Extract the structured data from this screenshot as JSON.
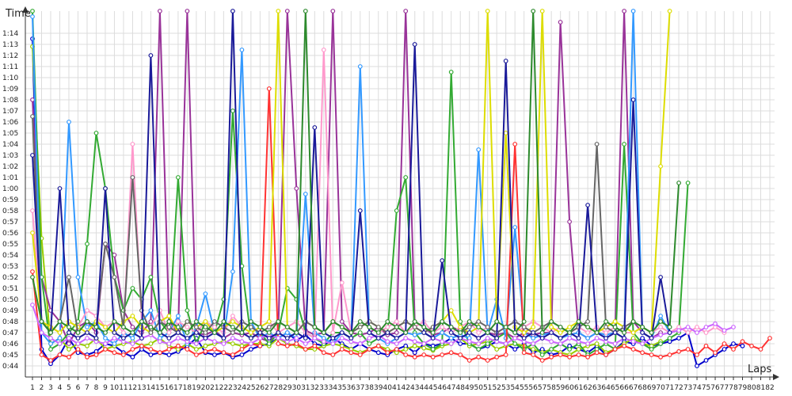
{
  "chart_data": {
    "type": "line",
    "ylabel": "Time",
    "xlabel": "Laps",
    "x_range": [
      1,
      82
    ],
    "ylim_seconds": [
      43,
      76
    ],
    "y_ticks": [
      "0:44",
      "0:45",
      "0:46",
      "0:47",
      "0:48",
      "0:49",
      "0:50",
      "0:51",
      "0:52",
      "0:53",
      "0:54",
      "0:55",
      "0:56",
      "0:57",
      "0:58",
      "0:59",
      "1:00",
      "1:01",
      "1:02",
      "1:03",
      "1:04",
      "1:05",
      "1:06",
      "1:07",
      "1:08",
      "1:09",
      "1:10",
      "1:11",
      "1:12",
      "1:13",
      "1:14"
    ],
    "y_tick_labels": [
      "0:44",
      "0:45",
      "0:46",
      "0:47",
      "0:48",
      "0:49",
      "0:50",
      "0:51",
      "0:52",
      "0:53",
      "0:54",
      "0:55",
      "0:56",
      "0:57",
      "0:58",
      "0:59",
      "1:00",
      "1:01",
      "1:02",
      "1:03",
      "1:04",
      "1:05",
      "1:06",
      "1:07",
      "1:08",
      "1:09",
      "1:10",
      "1:11",
      "1:12",
      "1:13",
      "1:14"
    ],
    "grid": true,
    "series": [
      {
        "color": "#0000cc",
        "values": [
          73.5,
          45.5,
          44.2,
          45.0,
          46.5,
          45.2,
          45.0,
          45.3,
          46.0,
          45.8,
          45.2,
          44.8,
          45.5,
          45.0,
          45.2,
          45.0,
          45.3,
          45.8,
          46.5,
          45.2,
          45.0,
          45.2,
          44.8,
          45.0,
          45.5,
          45.8,
          46.0,
          46.5,
          47.0,
          46.3,
          46.8,
          46.0,
          45.8,
          46.5,
          46.0,
          45.5,
          46.0,
          45.5,
          45.2,
          45.0,
          45.5,
          45.8,
          45.2,
          46.0,
          45.8,
          46.0,
          46.5,
          46.0,
          46.0,
          45.5,
          45.8,
          46.2,
          46.0,
          45.5,
          46.0,
          45.2,
          45.5,
          45.0,
          45.2,
          45.8,
          45.5,
          45.2,
          45.8,
          45.0,
          45.5,
          46.2,
          46.0,
          46.5,
          45.8,
          46.0,
          46.2,
          46.5,
          47.0,
          44.0,
          44.5,
          45.0,
          45.5,
          46.0,
          45.8
        ]
      },
      {
        "color": "#99cc00",
        "values": [
          72.8,
          55.5,
          46.0,
          46.5,
          45.5,
          46.0,
          45.8,
          46.5,
          45.5,
          45.8,
          46.0,
          46.2,
          45.8,
          46.0,
          46.5,
          45.8,
          45.5,
          46.0,
          45.5,
          45.8,
          46.0,
          46.2,
          46.0,
          45.8,
          46.0,
          46.0,
          45.8,
          46.5,
          46.0,
          45.8,
          45.5,
          45.5,
          45.8,
          46.0,
          45.8,
          45.5,
          45.2,
          45.5,
          45.8,
          45.5,
          45.2,
          45.5,
          45.8,
          45.6,
          45.4,
          45.8,
          46.0,
          46.5,
          45.8,
          46.0,
          46.2,
          45.5,
          45.8,
          46.0,
          45.8,
          45.5,
          45.2,
          45.5,
          45.2,
          45.0,
          45.5,
          45.8,
          46.0,
          45.2,
          45.5,
          46.0,
          46.5,
          46.0,
          45.8,
          46.2
        ]
      },
      {
        "color": "#993399",
        "values": [
          68.0,
          52.0,
          49.0,
          48.0,
          46.0,
          47.5,
          48.0,
          47.0,
          55.0,
          54.0,
          49.0,
          47.5,
          47.0,
          48.0,
          76.0,
          48.0,
          47.0,
          76.0,
          47.0,
          46.8,
          47.2,
          46.5,
          47.0,
          46.8,
          47.0,
          46.5,
          46.2,
          47.0,
          76.0,
          60.0,
          47.2,
          46.8,
          47.0,
          76.0,
          48.0,
          47.0,
          46.8,
          47.0,
          47.5,
          46.8,
          47.0,
          76.0,
          48.0,
          47.5,
          46.8,
          47.0,
          47.5,
          47.2,
          47.0,
          46.5,
          47.0,
          46.8,
          47.0,
          46.5,
          47.0,
          46.8,
          47.0,
          47.0,
          75.0,
          57.0,
          47.0,
          46.5,
          47.0,
          46.8,
          47.0,
          76.0,
          48.0,
          47.0,
          46.5,
          47.0
        ]
      },
      {
        "color": "#33aa33",
        "values": [
          76.0,
          52.0,
          45.5,
          46.0,
          47.0,
          48.0,
          55.0,
          65.0,
          60.0,
          52.0,
          49.0,
          51.0,
          50.0,
          52.0,
          48.0,
          47.0,
          61.0,
          49.0,
          46.0,
          48.0,
          47.0,
          50.0,
          67.0,
          53.0,
          46.5,
          47.0,
          46.0,
          47.0,
          51.0,
          50.0,
          47.0,
          46.5,
          46.0,
          47.0,
          47.0,
          46.5,
          47.0,
          46.0,
          46.5,
          47.0,
          58.0,
          61.0,
          47.0,
          46.0,
          45.5,
          46.0,
          70.5,
          48.0,
          46.0,
          45.5,
          46.0,
          46.5,
          47.0,
          46.0,
          45.5,
          46.0,
          45.0,
          45.5,
          46.0,
          45.5,
          46.0,
          45.0,
          45.5,
          46.0,
          45.5,
          64.0,
          47.0,
          46.0,
          45.5,
          46.0,
          46.5,
          47.0,
          60.5
        ]
      },
      {
        "color": "#3399ff",
        "values": [
          75.5,
          47.0,
          46.0,
          46.5,
          66.0,
          52.0,
          47.5,
          48.0,
          46.5,
          46.0,
          47.0,
          46.5,
          48.0,
          49.0,
          46.5,
          47.0,
          48.5,
          46.0,
          47.5,
          50.5,
          47.0,
          46.5,
          52.5,
          72.5,
          48.0,
          46.5,
          47.0,
          46.5,
          47.0,
          46.5,
          59.5,
          47.0,
          46.5,
          46.0,
          47.0,
          46.5,
          71.0,
          47.0,
          46.5,
          46.0,
          46.5,
          47.0,
          46.8,
          47.0,
          46.5,
          47.0,
          46.5,
          46.8,
          46.5,
          63.5,
          47.0,
          50.0,
          46.5,
          56.5,
          47.0,
          46.5,
          46.8,
          47.0,
          46.5,
          46.8,
          47.0,
          46.5,
          47.0,
          46.8,
          47.0,
          46.5,
          76.0,
          47.0,
          46.5,
          48.5,
          47.0
        ]
      },
      {
        "color": "#ff3333",
        "values": [
          52.5,
          45.0,
          44.5,
          45.0,
          44.8,
          45.5,
          44.8,
          45.0,
          45.5,
          45.2,
          45.0,
          45.5,
          45.8,
          45.5,
          45.2,
          45.5,
          45.8,
          45.5,
          45.0,
          45.3,
          45.5,
          45.2,
          45.0,
          45.5,
          46.0,
          45.8,
          69.0,
          46.0,
          45.8,
          46.0,
          45.5,
          45.8,
          45.2,
          45.0,
          45.5,
          45.2,
          45.0,
          45.5,
          45.8,
          45.2,
          45.5,
          45.0,
          44.8,
          45.0,
          44.8,
          45.0,
          45.2,
          45.0,
          44.5,
          44.8,
          44.5,
          44.8,
          45.0,
          64.0,
          45.2,
          45.0,
          44.5,
          44.8,
          45.0,
          44.8,
          45.0,
          44.8,
          45.2,
          45.0,
          45.5,
          45.8,
          45.5,
          45.2,
          45.0,
          44.8,
          45.0,
          45.3,
          45.5,
          45.0,
          45.8,
          45.2,
          46.0,
          45.5,
          46.2,
          45.8,
          45.5,
          46.5
        ]
      },
      {
        "color": "#ff99cc",
        "values": [
          58.0,
          48.0,
          47.5,
          47.0,
          48.0,
          47.5,
          49.0,
          48.5,
          47.5,
          48.0,
          47.0,
          64.0,
          48.0,
          47.5,
          49.0,
          47.0,
          48.0,
          47.5,
          47.0,
          48.0,
          47.5,
          47.0,
          48.5,
          47.5,
          47.0,
          47.5,
          48.0,
          47.0,
          47.5,
          48.0,
          47.0,
          46.5,
          72.5,
          47.0,
          51.5,
          47.0,
          48.0,
          47.5,
          47.0,
          47.5,
          48.0,
          47.0,
          47.5,
          48.0,
          47.0,
          47.5,
          47.0,
          47.5,
          48.0,
          47.0,
          47.5,
          47.0,
          47.5,
          47.0,
          47.5,
          48.0,
          47.5,
          47.0,
          47.5,
          47.0,
          47.5,
          47.0,
          47.5,
          47.0,
          47.5,
          47.0,
          47.0,
          47.5,
          47.0,
          47.5,
          47.0,
          47.5,
          47.0,
          47.5,
          47.0,
          47.5,
          47.0
        ]
      },
      {
        "color": "#cc66ff",
        "values": [
          49.5,
          47.0,
          46.5,
          46.0,
          46.5,
          46.0,
          46.5,
          46.2,
          46.0,
          46.5,
          46.2,
          46.0,
          46.5,
          46.8,
          46.2,
          46.0,
          46.5,
          46.2,
          46.0,
          46.5,
          46.2,
          46.0,
          46.5,
          46.2,
          46.0,
          46.5,
          46.8,
          46.5,
          46.2,
          46.5,
          46.0,
          46.5,
          46.2,
          46.0,
          46.5,
          46.2,
          46.0,
          46.5,
          46.8,
          46.2,
          46.0,
          46.5,
          46.2,
          46.0,
          46.5,
          46.2,
          46.0,
          46.5,
          46.2,
          46.0,
          46.5,
          46.2,
          46.0,
          46.5,
          46.2,
          46.0,
          46.5,
          46.2,
          46.0,
          46.5,
          46.2,
          46.0,
          46.5,
          46.2,
          46.0,
          46.5,
          46.2,
          46.0,
          46.5,
          46.8,
          47.0,
          47.2,
          47.5,
          47.0,
          47.5,
          47.8,
          47.2,
          47.5
        ]
      },
      {
        "color": "#dddd00",
        "values": [
          56.0,
          48.0,
          47.5,
          47.0,
          48.0,
          47.5,
          47.0,
          48.0,
          47.5,
          47.0,
          48.0,
          48.5,
          47.5,
          47.0,
          48.0,
          48.5,
          47.0,
          48.0,
          47.5,
          48.0,
          47.0,
          47.5,
          48.0,
          47.5,
          47.0,
          47.5,
          48.0,
          76.0,
          47.5,
          47.0,
          48.0,
          47.5,
          47.0,
          48.0,
          47.5,
          47.0,
          47.5,
          48.0,
          47.5,
          47.0,
          47.5,
          48.0,
          47.5,
          47.0,
          47.5,
          48.0,
          49.0,
          47.5,
          47.0,
          47.5,
          76.0,
          48.0,
          65.0,
          47.5,
          47.0,
          47.5,
          76.0,
          47.5,
          47.0,
          47.5,
          48.0,
          47.5,
          47.0,
          47.5,
          48.0,
          47.5,
          47.0,
          47.5,
          47.0,
          62.0,
          76.0
        ]
      },
      {
        "color": "#666666",
        "values": [
          66.5,
          48.0,
          47.0,
          48.0,
          52.0,
          47.0,
          48.0,
          47.5,
          55.0,
          52.0,
          47.5,
          61.0,
          49.0,
          47.0,
          48.0,
          47.5,
          47.0,
          48.0,
          47.5,
          47.0,
          48.0,
          47.5,
          47.0,
          48.0,
          47.5,
          47.0,
          47.5,
          48.0,
          47.5,
          47.0,
          48.0,
          47.5,
          47.0,
          48.0,
          47.5,
          47.0,
          47.5,
          48.0,
          47.5,
          47.0,
          47.5,
          48.0,
          47.5,
          47.0,
          47.5,
          48.0,
          47.5,
          47.0,
          47.5,
          48.0,
          47.5,
          47.0,
          47.5,
          48.0,
          47.5,
          47.0,
          47.5,
          48.0,
          47.5,
          47.0,
          47.5,
          48.0,
          64.0,
          47.5,
          47.0,
          47.5,
          48.0,
          47.5
        ]
      },
      {
        "color": "#1a1a99",
        "values": [
          63.0,
          48.0,
          47.0,
          60.0,
          47.0,
          46.5,
          47.0,
          46.5,
          60.0,
          47.0,
          46.5,
          47.0,
          46.5,
          72.0,
          47.0,
          46.5,
          47.0,
          46.5,
          47.0,
          46.5,
          47.0,
          46.5,
          76.0,
          47.0,
          46.5,
          47.0,
          46.5,
          47.0,
          46.5,
          47.0,
          46.5,
          65.5,
          47.0,
          46.5,
          47.0,
          46.5,
          58.0,
          47.0,
          46.5,
          47.0,
          46.5,
          47.0,
          73.0,
          47.0,
          46.5,
          53.5,
          47.0,
          46.5,
          47.0,
          46.5,
          47.0,
          46.5,
          71.5,
          47.0,
          46.5,
          47.0,
          46.5,
          47.0,
          46.5,
          47.0,
          46.5,
          58.5,
          47.0,
          46.5,
          47.0,
          46.5,
          68.0,
          47.0,
          46.5,
          52.0,
          47.0
        ]
      },
      {
        "color": "#2d8a2d",
        "values": [
          52.0,
          48.0,
          47.0,
          48.0,
          47.5,
          47.0,
          48.0,
          47.5,
          47.0,
          48.0,
          47.5,
          47.0,
          48.0,
          47.5,
          47.0,
          48.0,
          47.5,
          47.0,
          48.0,
          47.5,
          47.0,
          48.0,
          47.5,
          47.0,
          48.0,
          47.5,
          47.0,
          48.0,
          47.5,
          47.0,
          76.0,
          47.5,
          47.0,
          48.0,
          47.5,
          47.0,
          48.0,
          47.5,
          47.0,
          48.0,
          47.5,
          47.0,
          48.0,
          47.5,
          47.0,
          48.0,
          47.5,
          47.0,
          48.0,
          47.5,
          47.0,
          48.0,
          47.5,
          47.0,
          48.0,
          76.0,
          47.0,
          48.0,
          47.5,
          47.0,
          48.0,
          47.5,
          47.0,
          48.0,
          47.5,
          47.0,
          48.0,
          47.5,
          47.0,
          48.0,
          47.5,
          60.5
        ]
      }
    ]
  }
}
